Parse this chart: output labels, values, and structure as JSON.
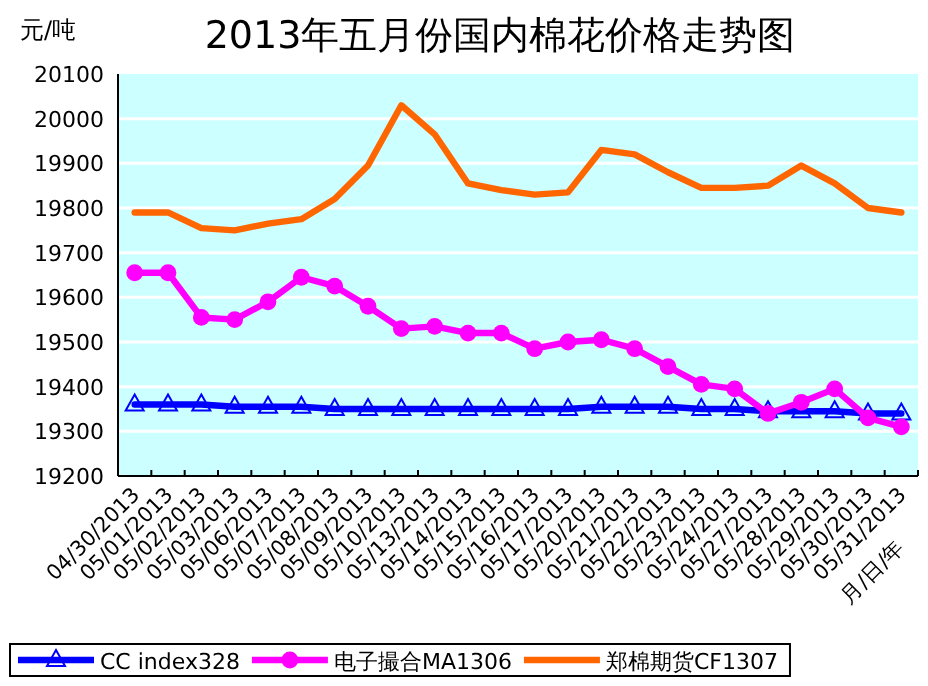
{
  "chart_data": {
    "type": "line",
    "title": "2013年五月份国内棉花价格走势图",
    "ylabel": "元/吨",
    "xlabel": "月/日/年",
    "categories": [
      "04/30/2013",
      "05/01/2013",
      "05/02/2013",
      "05/03/2013",
      "05/06/2013",
      "05/07/2013",
      "05/08/2013",
      "05/09/2013",
      "05/10/2013",
      "05/13/2013",
      "05/14/2013",
      "05/15/2013",
      "05/16/2013",
      "05/17/2013",
      "05/20/2013",
      "05/21/2013",
      "05/22/2013",
      "05/23/2013",
      "05/24/2013",
      "05/27/2013",
      "05/28/2013",
      "05/29/2013",
      "05/30/2013",
      "05/31/2013"
    ],
    "series": [
      {
        "name": "CC index328",
        "color": "#0000ff",
        "marker": "triangle",
        "values": [
          19360,
          19360,
          19360,
          19355,
          19355,
          19355,
          19350,
          19350,
          19350,
          19350,
          19350,
          19350,
          19350,
          19350,
          19355,
          19355,
          19355,
          19350,
          19350,
          19345,
          19345,
          19345,
          19340,
          19340
        ]
      },
      {
        "name": "电子撮合MA1306",
        "color": "#ff00ff",
        "marker": "circle",
        "values": [
          19655,
          19655,
          19555,
          19550,
          19590,
          19645,
          19625,
          19580,
          19530,
          19535,
          19520,
          19520,
          19485,
          19500,
          19505,
          19485,
          19445,
          19405,
          19395,
          19340,
          19365,
          19395,
          19330,
          19310
        ]
      },
      {
        "name": "郑棉期货CF1307",
        "color": "#ff6600",
        "marker": "none",
        "values": [
          19790,
          19790,
          19755,
          19750,
          19765,
          19775,
          19820,
          19895,
          20030,
          19965,
          19855,
          19840,
          19830,
          19835,
          19930,
          19920,
          19880,
          19845,
          19845,
          19850,
          19895,
          19855,
          19800,
          19790
        ]
      }
    ],
    "ylim": [
      19200,
      20100
    ],
    "yticks": [
      19200,
      19300,
      19400,
      19500,
      19600,
      19700,
      19800,
      19900,
      20000,
      20100
    ],
    "grid": "y",
    "legend": "bottom"
  }
}
